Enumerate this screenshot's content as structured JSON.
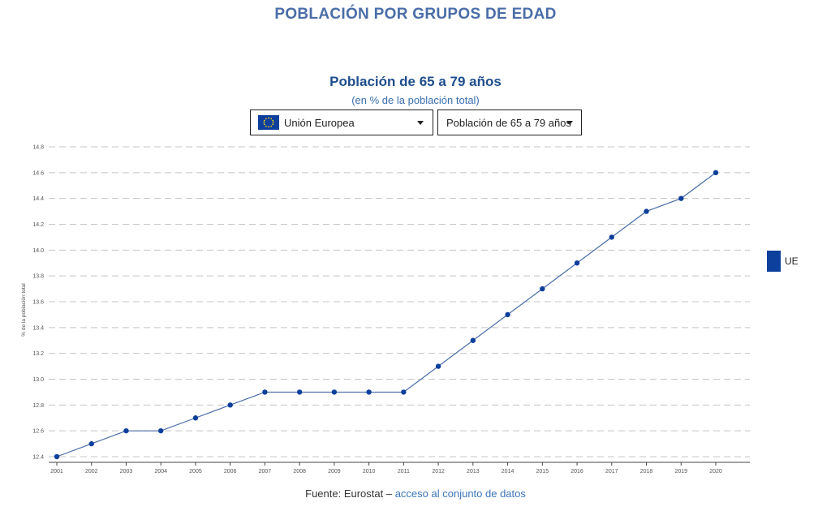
{
  "page_heading": "POBLACIÓN POR GRUPOS DE EDAD",
  "controls": {
    "country_label": "Unión Europea",
    "indicator_label": "Población de 65 a 79 años"
  },
  "legend": {
    "label": "UE"
  },
  "source": {
    "prefix": "Fuente: Eurostat –",
    "link_text": "acceso al conjunto de datos"
  },
  "colors": {
    "series": "#0d3f9c",
    "line": "#4a6da7",
    "grid": "#c4c4c4",
    "heading": "#4a6da7"
  },
  "chart_data": {
    "type": "line",
    "title": "Población de 65 a 79 años",
    "subtitle": "(en % de la población total)",
    "ylabel": "% de la población total",
    "xlabel": "",
    "ylim": [
      12.4,
      14.8
    ],
    "yticks": [
      "12.4",
      "12.6",
      "12.8",
      "13.0",
      "13.2",
      "13.4",
      "13.6",
      "13.8",
      "14.0",
      "14.2",
      "14.4",
      "14.6",
      "14.8"
    ],
    "grid": true,
    "legend_position": "right",
    "categories": [
      "2001",
      "2002",
      "2003",
      "2004",
      "2005",
      "2006",
      "2007",
      "2008",
      "2009",
      "2010",
      "2011",
      "2012",
      "2013",
      "2014",
      "2015",
      "2016",
      "2017",
      "2018",
      "2019",
      "2020"
    ],
    "series": [
      {
        "name": "UE",
        "values": [
          12.4,
          12.5,
          12.6,
          12.6,
          12.7,
          12.8,
          12.9,
          12.9,
          12.9,
          12.9,
          12.9,
          13.1,
          13.3,
          13.5,
          13.7,
          13.9,
          14.1,
          14.3,
          14.4,
          14.6
        ]
      }
    ]
  }
}
